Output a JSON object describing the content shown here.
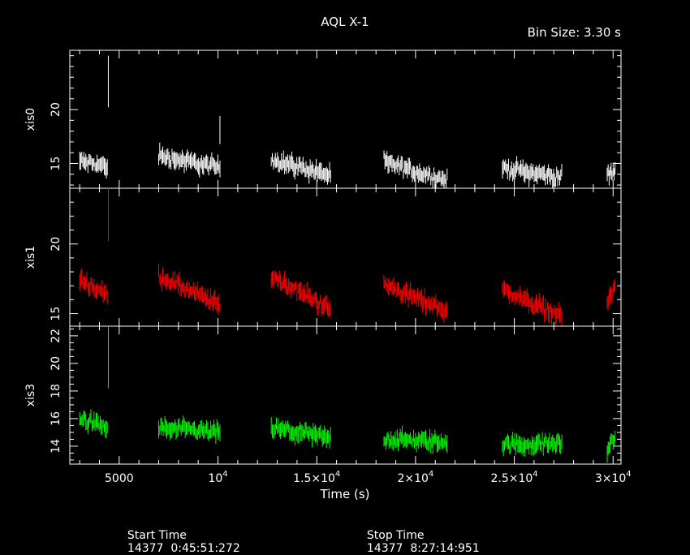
{
  "chart_data": {
    "type": "line",
    "title": "AQL X-1",
    "subtitle": "Bin Size: 3.30 s",
    "xlabel": "Time (s)",
    "xlim": [
      2500,
      30400
    ],
    "x_ticks": [
      {
        "value": 5000,
        "label": "5000",
        "exp": ""
      },
      {
        "value": 10000,
        "label": "10",
        "exp": "4"
      },
      {
        "value": 15000,
        "label": "1.5×10",
        "exp": "4"
      },
      {
        "value": 20000,
        "label": "2×10",
        "exp": "4"
      },
      {
        "value": 25000,
        "label": "2.5×10",
        "exp": "4"
      },
      {
        "value": 30000,
        "label": "3×10",
        "exp": "4"
      }
    ],
    "grid": false,
    "panels": [
      {
        "name": "xis0",
        "ylabel": "xis0",
        "color": "#ffffff",
        "ylim": [
          12.7,
          25.5
        ],
        "y_ticks": [
          15,
          20
        ],
        "segments": [
          {
            "x0": 3000,
            "x1": 4400,
            "start": 15.2,
            "end": 14.7
          },
          {
            "x0": 7000,
            "x1": 10100,
            "start": 15.7,
            "end": 14.6
          },
          {
            "x0": 12700,
            "x1": 15700,
            "start": 15.4,
            "end": 13.9
          },
          {
            "x0": 18400,
            "x1": 21600,
            "start": 15.1,
            "end": 13.4
          },
          {
            "x0": 24400,
            "x1": 27400,
            "start": 14.6,
            "end": 13.7
          },
          {
            "x0": 29700,
            "x1": 30100,
            "start": 14.0,
            "end": 14.2
          }
        ],
        "spikes": [
          {
            "x": 4450,
            "low": 20.2,
            "high": 25.0
          },
          {
            "x": 10100,
            "low": 16.8,
            "high": 19.4
          }
        ]
      },
      {
        "name": "xis1",
        "ylabel": "xis1",
        "color": "#ff0000",
        "ylim": [
          14.1,
          24.0
        ],
        "y_ticks": [
          15,
          20
        ],
        "segments": [
          {
            "x0": 3000,
            "x1": 4400,
            "start": 17.5,
            "end": 16.3
          },
          {
            "x0": 7000,
            "x1": 10100,
            "start": 17.7,
            "end": 15.6
          },
          {
            "x0": 12700,
            "x1": 15700,
            "start": 17.7,
            "end": 15.3
          },
          {
            "x0": 18400,
            "x1": 21600,
            "start": 17.1,
            "end": 15.2
          },
          {
            "x0": 24400,
            "x1": 27400,
            "start": 16.7,
            "end": 14.8
          },
          {
            "x0": 29700,
            "x1": 30100,
            "start": 15.8,
            "end": 16.9
          }
        ],
        "spikes": [
          {
            "x": 4450,
            "low": 20.2,
            "high": 24.0
          }
        ]
      },
      {
        "name": "xis3",
        "ylabel": "xis3",
        "color": "#00ff00",
        "ylim": [
          12.7,
          22.7
        ],
        "y_ticks": [
          14,
          16,
          18,
          20,
          22
        ],
        "segments": [
          {
            "x0": 3000,
            "x1": 4400,
            "start": 16.0,
            "end": 15.3
          },
          {
            "x0": 7000,
            "x1": 10100,
            "start": 15.3,
            "end": 15.0
          },
          {
            "x0": 12700,
            "x1": 15700,
            "start": 15.3,
            "end": 14.6
          },
          {
            "x0": 18400,
            "x1": 21600,
            "start": 14.5,
            "end": 14.3
          },
          {
            "x0": 24400,
            "x1": 27400,
            "start": 14.1,
            "end": 14.2
          },
          {
            "x0": 29700,
            "x1": 30100,
            "start": 13.8,
            "end": 14.6
          }
        ],
        "spikes": [
          {
            "x": 4450,
            "low": 18.2,
            "high": 22.7
          }
        ]
      }
    ]
  },
  "footer": {
    "start_label": "Start Time",
    "start_value": "14377  0:45:51:272",
    "stop_label": "Stop Time",
    "stop_value": "14377  8:27:14:951"
  }
}
